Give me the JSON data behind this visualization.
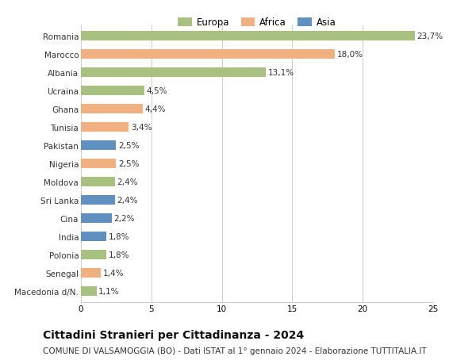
{
  "categories": [
    "Romania",
    "Marocco",
    "Albania",
    "Ucraina",
    "Ghana",
    "Tunisia",
    "Pakistan",
    "Nigeria",
    "Moldova",
    "Sri Lanka",
    "Cina",
    "India",
    "Polonia",
    "Senegal",
    "Macedonia d/N."
  ],
  "values": [
    23.7,
    18.0,
    13.1,
    4.5,
    4.4,
    3.4,
    2.5,
    2.5,
    2.4,
    2.4,
    2.2,
    1.8,
    1.8,
    1.4,
    1.1
  ],
  "labels": [
    "23,7%",
    "18,0%",
    "13,1%",
    "4,5%",
    "4,4%",
    "3,4%",
    "2,5%",
    "2,5%",
    "2,4%",
    "2,4%",
    "2,2%",
    "1,8%",
    "1,8%",
    "1,4%",
    "1,1%"
  ],
  "continents": [
    "Europa",
    "Africa",
    "Europa",
    "Europa",
    "Africa",
    "Africa",
    "Asia",
    "Africa",
    "Europa",
    "Asia",
    "Asia",
    "Asia",
    "Europa",
    "Africa",
    "Europa"
  ],
  "colors": {
    "Europa": "#a8c080",
    "Africa": "#f0b080",
    "Asia": "#6090c0"
  },
  "xlim": [
    0,
    25
  ],
  "xticks": [
    0,
    5,
    10,
    15,
    20,
    25
  ],
  "title": "Cittadini Stranieri per Cittadinanza - 2024",
  "subtitle": "COMUNE DI VALSAMOGGIA (BO) - Dati ISTAT al 1° gennaio 2024 - Elaborazione TUTTITALIA.IT",
  "background_color": "#ffffff",
  "bar_height": 0.55,
  "grid_color": "#cccccc",
  "text_color": "#333333",
  "title_fontsize": 10,
  "subtitle_fontsize": 7.5,
  "tick_fontsize": 7.5,
  "label_fontsize": 7.5,
  "legend_fontsize": 8.5
}
